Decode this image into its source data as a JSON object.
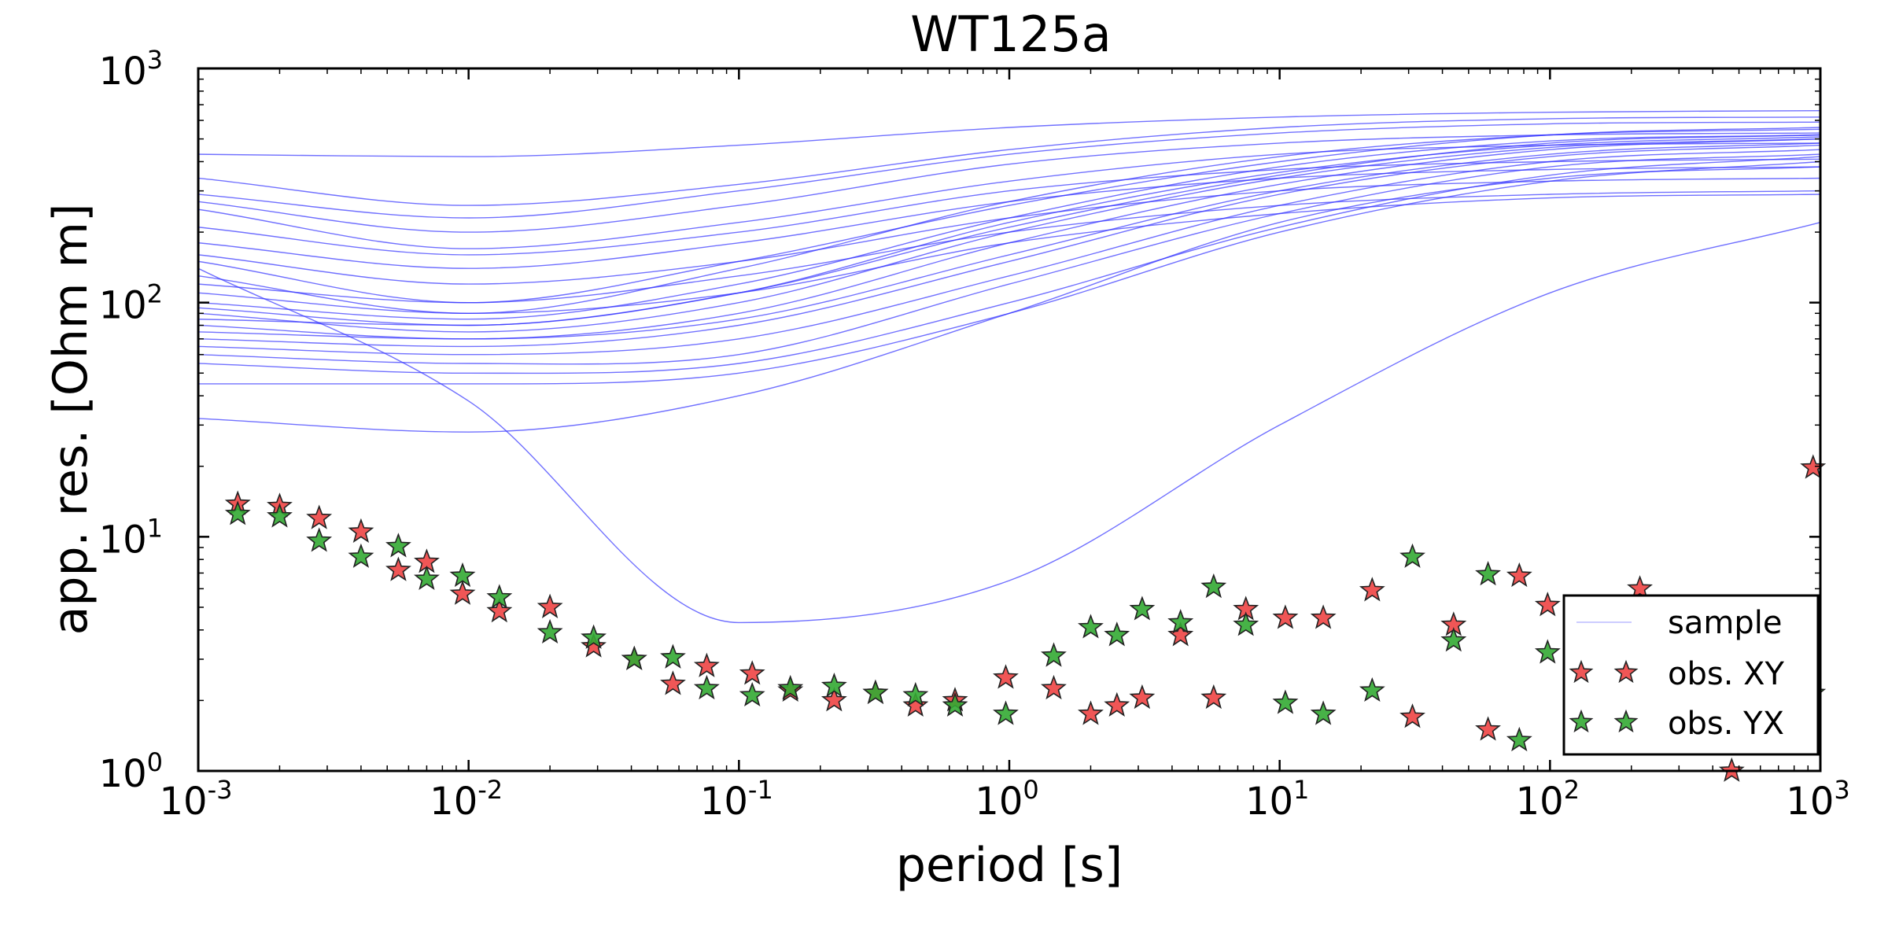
{
  "chart_data": {
    "type": "scatter",
    "title": "WT125a",
    "xlabel": "period [s]",
    "ylabel": "app. res. [Ohm m]",
    "x_scale": "log",
    "y_scale": "log",
    "xlim": [
      0.001,
      1000
    ],
    "ylim": [
      1,
      1000
    ],
    "grid": false,
    "legend_position": "bottom-right",
    "x_ticks": [
      {
        "value": 0.001,
        "base": "10",
        "exp": "-3"
      },
      {
        "value": 0.01,
        "base": "10",
        "exp": "-2"
      },
      {
        "value": 0.1,
        "base": "10",
        "exp": "-1"
      },
      {
        "value": 1,
        "base": "10",
        "exp": "0"
      },
      {
        "value": 10,
        "base": "10",
        "exp": "1"
      },
      {
        "value": 100,
        "base": "10",
        "exp": "2"
      },
      {
        "value": 1000,
        "base": "10",
        "exp": "3"
      }
    ],
    "y_ticks": [
      {
        "value": 1,
        "base": "10",
        "exp": "0"
      },
      {
        "value": 10,
        "base": "10",
        "exp": "1"
      },
      {
        "value": 100,
        "base": "10",
        "exp": "2"
      },
      {
        "value": 1000,
        "base": "10",
        "exp": "3"
      }
    ],
    "legend": [
      "sample",
      "obs. XY",
      "obs. YX"
    ],
    "colors": {
      "sample": "#3333ff",
      "xy": "#ee4444",
      "yx": "#33aa33",
      "marker_edge": "#222222"
    },
    "sample_curves": {
      "periods": [
        0.001,
        0.01,
        0.1,
        1,
        10,
        100,
        1000
      ],
      "curves": [
        [
          430,
          420,
          470,
          560,
          620,
          650,
          660
        ],
        [
          340,
          260,
          320,
          450,
          560,
          610,
          620
        ],
        [
          290,
          230,
          300,
          430,
          530,
          580,
          590
        ],
        [
          270,
          200,
          260,
          390,
          480,
          520,
          530
        ],
        [
          250,
          170,
          220,
          330,
          430,
          470,
          480
        ],
        [
          210,
          160,
          200,
          300,
          370,
          400,
          410
        ],
        [
          180,
          140,
          180,
          270,
          340,
          370,
          380
        ],
        [
          160,
          120,
          150,
          230,
          300,
          330,
          340
        ],
        [
          150,
          100,
          130,
          200,
          260,
          290,
          300
        ],
        [
          130,
          90,
          110,
          180,
          240,
          280,
          290
        ],
        [
          120,
          100,
          150,
          260,
          400,
          520,
          560
        ],
        [
          110,
          90,
          140,
          270,
          420,
          520,
          550
        ],
        [
          100,
          85,
          120,
          230,
          380,
          490,
          520
        ],
        [
          95,
          80,
          110,
          220,
          360,
          470,
          510
        ],
        [
          90,
          75,
          100,
          200,
          340,
          460,
          500
        ],
        [
          85,
          80,
          110,
          210,
          350,
          480,
          520
        ],
        [
          80,
          70,
          90,
          180,
          320,
          450,
          500
        ],
        [
          75,
          70,
          85,
          160,
          300,
          430,
          480
        ],
        [
          70,
          65,
          80,
          150,
          290,
          420,
          470
        ],
        [
          65,
          60,
          70,
          130,
          260,
          400,
          450
        ],
        [
          60,
          55,
          60,
          120,
          240,
          380,
          430
        ],
        [
          55,
          50,
          55,
          100,
          210,
          350,
          420
        ],
        [
          45,
          45,
          50,
          90,
          200,
          330,
          400
        ],
        [
          32,
          28,
          40,
          90,
          220,
          340,
          380
        ],
        [
          140,
          38,
          4.3,
          6.5,
          30,
          110,
          220
        ]
      ]
    },
    "series": [
      {
        "name": "obs. XY",
        "x": [
          0.0014,
          0.002,
          0.0028,
          0.004,
          0.0055,
          0.007,
          0.0095,
          0.013,
          0.02,
          0.029,
          0.041,
          0.057,
          0.076,
          0.112,
          0.155,
          0.225,
          0.32,
          0.45,
          0.63,
          0.97,
          1.46,
          2.0,
          2.5,
          3.1,
          4.3,
          5.7,
          7.5,
          10.5,
          14.5,
          22,
          31,
          44,
          59,
          77,
          98,
          215,
          470,
          940
        ],
        "y": [
          13.8,
          13.5,
          12.0,
          10.5,
          7.2,
          7.8,
          5.7,
          4.8,
          5.0,
          3.4,
          3.0,
          2.35,
          2.8,
          2.6,
          2.2,
          2.0,
          2.15,
          1.9,
          2.0,
          2.5,
          2.25,
          1.75,
          1.9,
          2.05,
          3.8,
          2.05,
          4.9,
          4.5,
          4.5,
          5.9,
          1.7,
          4.2,
          1.5,
          6.8,
          5.1,
          6.0,
          1.0,
          19.7
        ]
      },
      {
        "name": "obs. YX",
        "x": [
          0.0014,
          0.002,
          0.0028,
          0.004,
          0.0055,
          0.007,
          0.0095,
          0.013,
          0.02,
          0.029,
          0.041,
          0.057,
          0.076,
          0.112,
          0.155,
          0.225,
          0.32,
          0.45,
          0.63,
          0.97,
          1.46,
          2.0,
          2.5,
          3.1,
          4.3,
          5.7,
          7.5,
          10.5,
          14.5,
          22,
          31,
          44,
          59,
          77,
          98,
          940
        ],
        "y": [
          12.5,
          12.2,
          9.6,
          8.2,
          9.1,
          6.6,
          6.8,
          5.5,
          3.9,
          3.7,
          3.0,
          3.05,
          2.25,
          2.1,
          2.25,
          2.3,
          2.15,
          2.1,
          1.9,
          1.75,
          3.1,
          4.1,
          3.8,
          4.9,
          4.3,
          6.1,
          4.2,
          1.95,
          1.75,
          2.2,
          8.2,
          3.6,
          6.9,
          1.35,
          3.2,
          2.15
        ]
      }
    ]
  }
}
